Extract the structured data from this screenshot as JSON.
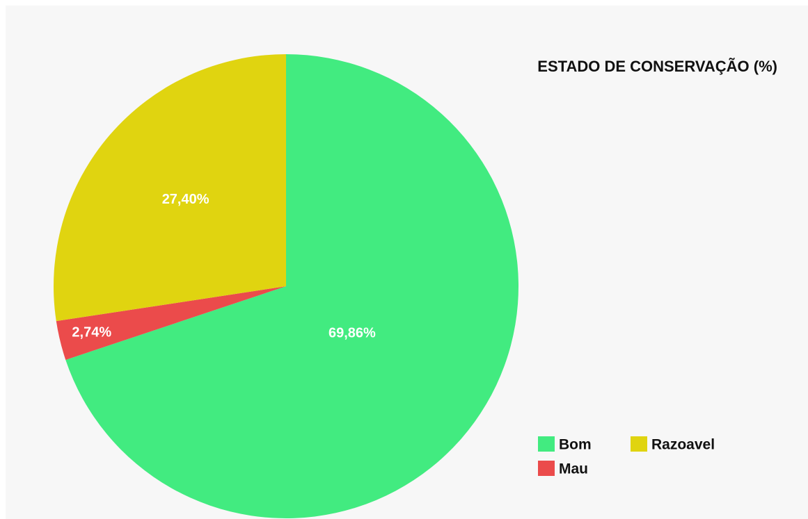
{
  "chart_data": {
    "type": "pie",
    "title": "ESTADO DE CONSERVAÇÃO (%)",
    "categories": [
      "Bom",
      "Mau",
      "Razoavel"
    ],
    "values": [
      69.86,
      2.74,
      27.4
    ],
    "value_labels": [
      "69,86%",
      "2,74%",
      "27,40%"
    ],
    "colors": [
      "#42eb80",
      "#eb4b4b",
      "#e0d410"
    ],
    "legend": "lower right"
  }
}
